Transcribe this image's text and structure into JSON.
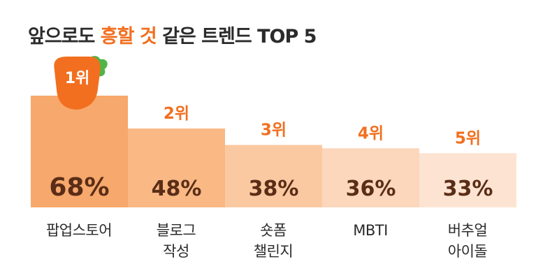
{
  "title": {
    "before": "앞으로도 ",
    "highlight": "흥할 것",
    "after": " 같은 트렌드 TOP 5"
  },
  "colors": {
    "title_text": "#2b2b2b",
    "highlight": "#f26f1f",
    "rank_text": "#f26f1f",
    "value_text": "#5a2d17",
    "bars": [
      "#f7a86c",
      "#f9b884",
      "#fbc9a1",
      "#fcd7bb",
      "#fde4d2"
    ],
    "carrot_body": "#f26f1f",
    "carrot_leaf": "#4fb548"
  },
  "chart_data": {
    "type": "bar",
    "title": "앞으로도 흥할 것 같은 트렌드 TOP 5",
    "categories": [
      "팝업스토어",
      "블로그\n작성",
      "숏폼\n챌린지",
      "MBTI",
      "버추얼\n아이돌"
    ],
    "values": [
      68,
      48,
      38,
      36,
      33
    ],
    "ranks": [
      "1위",
      "2위",
      "3위",
      "4위",
      "5위"
    ],
    "value_labels": [
      "68%",
      "48%",
      "38%",
      "36%",
      "33%"
    ],
    "unit": "%",
    "ylim": [
      0,
      68
    ],
    "grid": false,
    "legend": "none"
  }
}
